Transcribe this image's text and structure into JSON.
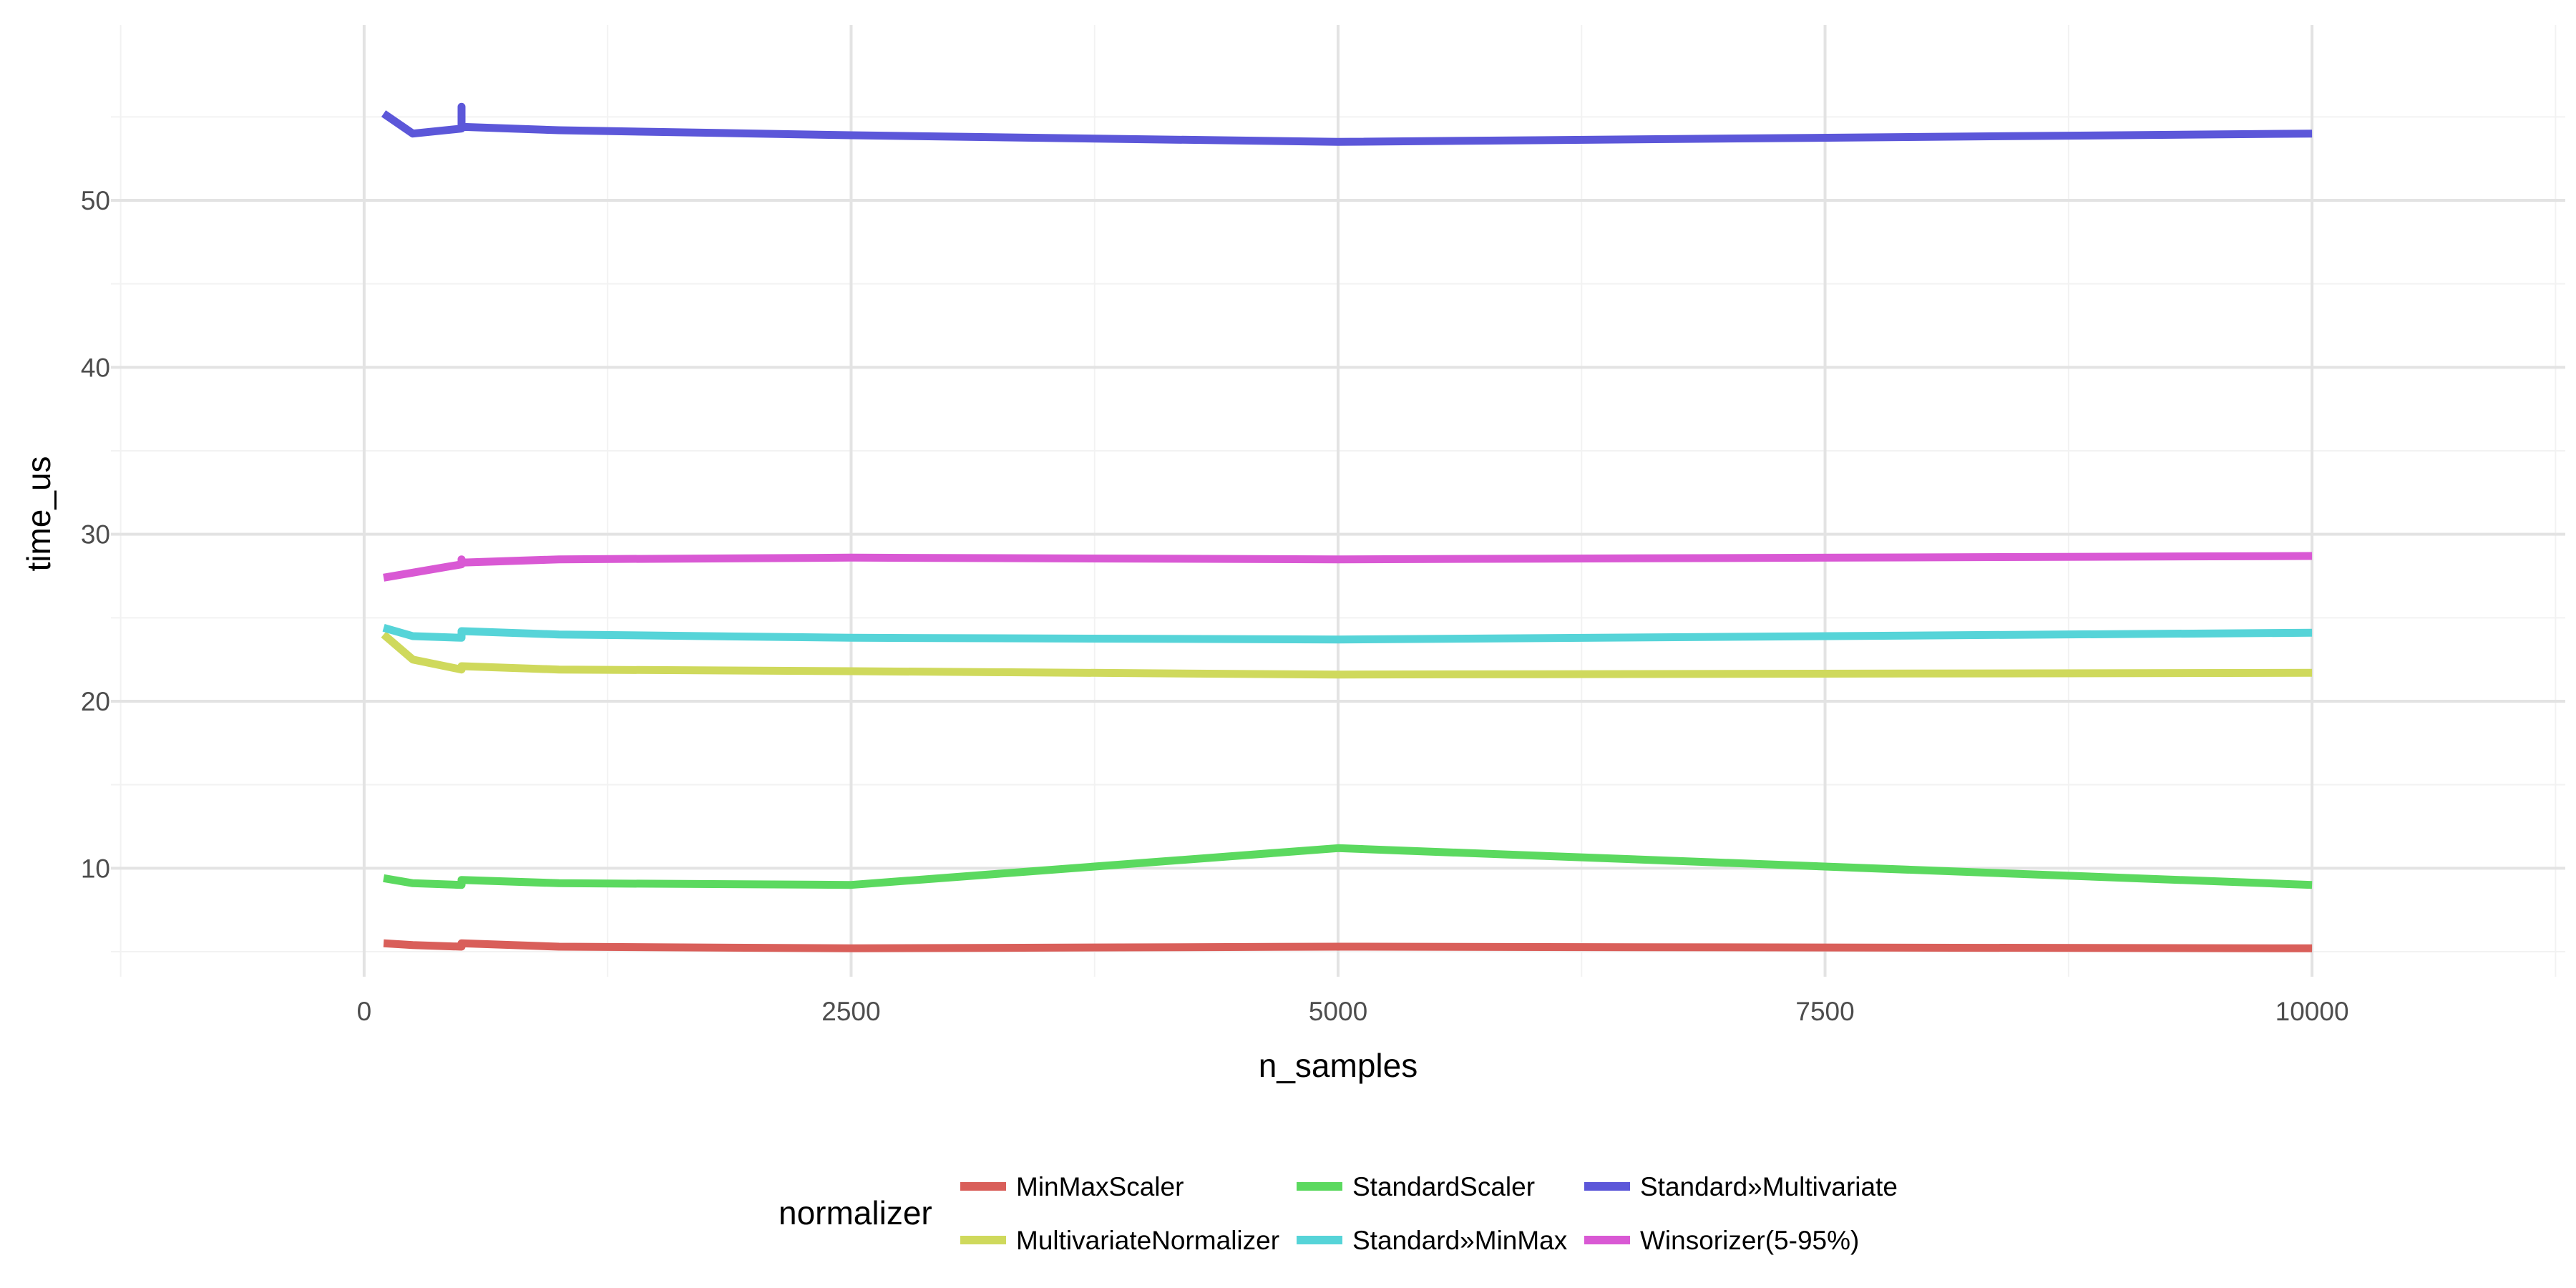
{
  "chart_data": {
    "type": "line",
    "title": "",
    "xlabel": "n_samples",
    "ylabel": "time_us",
    "xlim": [
      -1300,
      11300
    ],
    "ylim": [
      3.5,
      60.5
    ],
    "x_ticks": [
      0,
      2500,
      5000,
      7500,
      10000
    ],
    "x_tick_labels": [
      "0",
      "2500",
      "5000",
      "7500",
      "10000"
    ],
    "y_ticks": [
      10,
      20,
      30,
      40,
      50
    ],
    "y_tick_labels": [
      "10",
      "20",
      "30",
      "40",
      "50"
    ],
    "grid": true,
    "legend_title": "normalizer",
    "legend_position": "bottom",
    "series": [
      {
        "name": "MinMaxScaler",
        "color": "#d95f5a",
        "points": [
          [
            100,
            5.5
          ],
          [
            250,
            5.4
          ],
          [
            500,
            5.3
          ],
          [
            500,
            5.5
          ],
          [
            1000,
            5.3
          ],
          [
            2500,
            5.2
          ],
          [
            5000,
            5.3
          ],
          [
            10000,
            5.2
          ]
        ]
      },
      {
        "name": "MultivariateNormalizer",
        "color": "#cfd95c",
        "points": [
          [
            100,
            24.0
          ],
          [
            250,
            22.5
          ],
          [
            500,
            21.9
          ],
          [
            500,
            22.1
          ],
          [
            1000,
            21.9
          ],
          [
            2500,
            21.8
          ],
          [
            5000,
            21.6
          ],
          [
            10000,
            21.7
          ]
        ]
      },
      {
        "name": "StandardScaler",
        "color": "#5bd95f",
        "points": [
          [
            100,
            9.4
          ],
          [
            250,
            9.1
          ],
          [
            500,
            9.0
          ],
          [
            500,
            9.3
          ],
          [
            1000,
            9.1
          ],
          [
            2500,
            9.0
          ],
          [
            5000,
            11.2
          ],
          [
            10000,
            9.0
          ]
        ]
      },
      {
        "name": "Standard»MinMax",
        "color": "#56d4d8",
        "points": [
          [
            100,
            24.4
          ],
          [
            250,
            23.9
          ],
          [
            500,
            23.8
          ],
          [
            500,
            24.2
          ],
          [
            1000,
            24.0
          ],
          [
            2500,
            23.8
          ],
          [
            5000,
            23.7
          ],
          [
            10000,
            24.1
          ]
        ]
      },
      {
        "name": "Standard»Multivariate",
        "color": "#5c57d9",
        "points": [
          [
            100,
            55.2
          ],
          [
            250,
            54.0
          ],
          [
            500,
            54.3
          ],
          [
            500,
            55.6
          ],
          [
            500,
            54.4
          ],
          [
            1000,
            54.2
          ],
          [
            2500,
            53.9
          ],
          [
            5000,
            53.5
          ],
          [
            10000,
            54.0
          ]
        ]
      },
      {
        "name": "Winsorizer(5-95%)",
        "color": "#d959d4",
        "points": [
          [
            100,
            27.4
          ],
          [
            250,
            27.7
          ],
          [
            500,
            28.2
          ],
          [
            500,
            28.5
          ],
          [
            500,
            28.3
          ],
          [
            1000,
            28.5
          ],
          [
            2500,
            28.6
          ],
          [
            5000,
            28.5
          ],
          [
            10000,
            28.7
          ]
        ]
      }
    ]
  },
  "legend_items": [
    {
      "label": "MinMaxScaler",
      "color": "#d95f5a"
    },
    {
      "label": "MultivariateNormalizer",
      "color": "#cfd95c"
    },
    {
      "label": "StandardScaler",
      "color": "#5bd95f"
    },
    {
      "label": "Standard»MinMax",
      "color": "#56d4d8"
    },
    {
      "label": "Standard»Multivariate",
      "color": "#5c57d9"
    },
    {
      "label": "Winsorizer(5-95%)",
      "color": "#d959d4"
    }
  ]
}
